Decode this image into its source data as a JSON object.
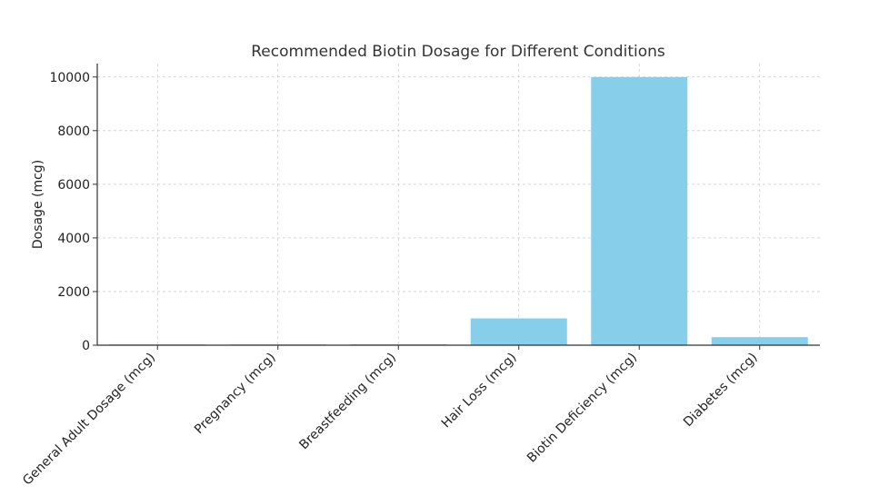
{
  "chart_data": {
    "type": "bar",
    "title": "Recommended Biotin Dosage for Different Conditions",
    "xlabel": "",
    "ylabel": "Dosage (mcg)",
    "categories": [
      "General Adult Dosage (mcg)",
      "Pregnancy (mcg)",
      "Breastfeeding (mcg)",
      "Hair Loss (mcg)",
      "Biotin Deficiency (mcg)",
      "Diabetes (mcg)"
    ],
    "values": [
      30,
      30,
      35,
      1000,
      10000,
      300
    ],
    "ylim": [
      0,
      10500
    ],
    "yticks": [
      0,
      2000,
      4000,
      6000,
      8000,
      10000
    ],
    "grid": true,
    "colors": {
      "bar": "#87ceeb"
    }
  }
}
